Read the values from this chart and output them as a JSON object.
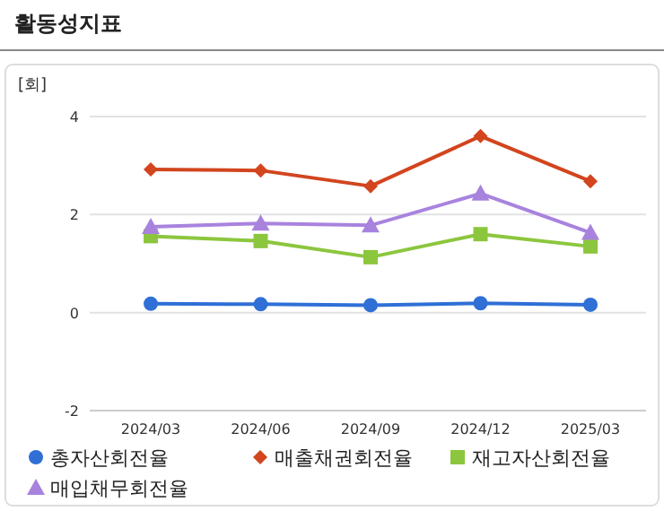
{
  "chart_data": {
    "type": "line",
    "title": "활동성지표",
    "ylabel": "[회]",
    "categories": [
      "2024/03",
      "2024/06",
      "2024/09",
      "2024/12",
      "2025/03"
    ],
    "ylim": [
      -2,
      4
    ],
    "yticks": [
      -2,
      0,
      2,
      4
    ],
    "grid": "y",
    "legend": "bottom",
    "series": [
      {
        "name": "총자산회전율",
        "color": "#2f6fd6",
        "marker": "circle",
        "values": [
          0.18,
          0.17,
          0.15,
          0.19,
          0.16
        ]
      },
      {
        "name": "매출채권회전율",
        "color": "#d2451e",
        "marker": "diamond",
        "values": [
          2.92,
          2.9,
          2.58,
          3.6,
          2.68
        ]
      },
      {
        "name": "재고자산회전율",
        "color": "#8cc63e",
        "marker": "square",
        "values": [
          1.56,
          1.46,
          1.13,
          1.6,
          1.35
        ]
      },
      {
        "name": "매입채무회전율",
        "color": "#a883de",
        "marker": "triangle",
        "values": [
          1.75,
          1.82,
          1.78,
          2.43,
          1.63
        ]
      }
    ]
  }
}
